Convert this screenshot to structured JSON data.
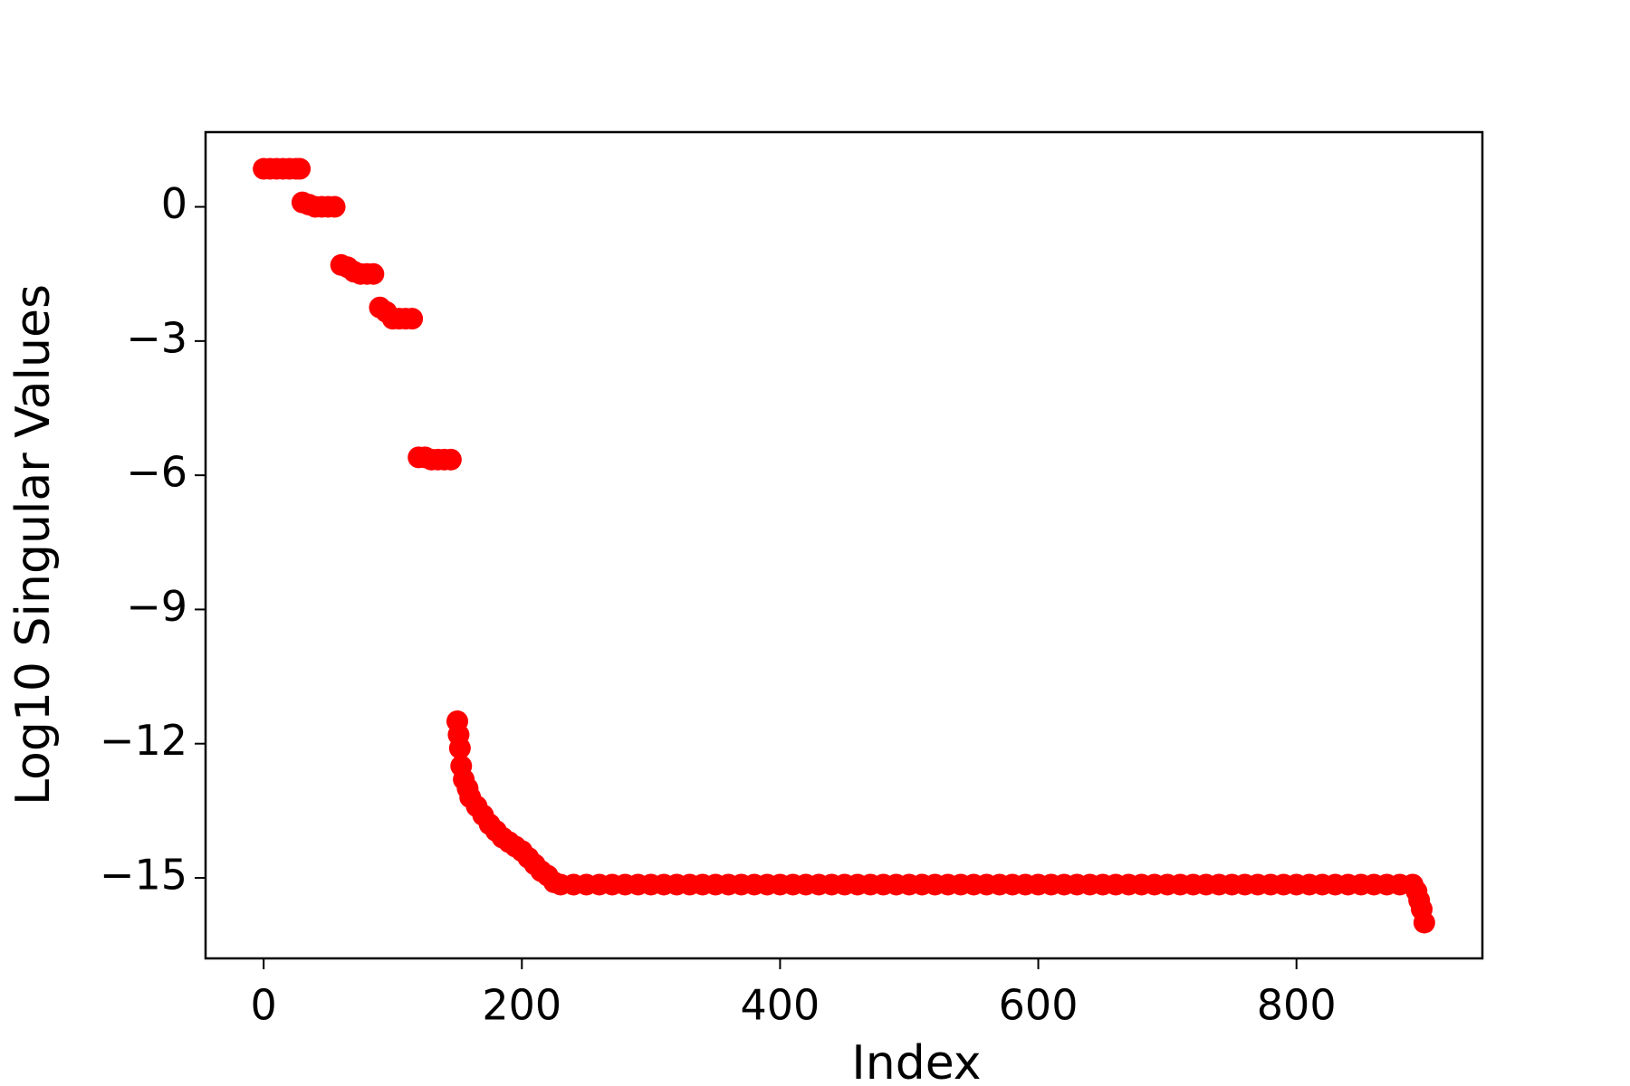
{
  "chart_data": {
    "type": "scatter",
    "xlabel": "Index",
    "ylabel": "Log10 Singular Values",
    "x": [
      0,
      5,
      10,
      15,
      20,
      25,
      28,
      30,
      35,
      40,
      45,
      50,
      55,
      60,
      65,
      70,
      75,
      80,
      85,
      90,
      95,
      100,
      105,
      110,
      115,
      120,
      125,
      130,
      135,
      140,
      145,
      150,
      151,
      152,
      153,
      155,
      158,
      160,
      165,
      170,
      175,
      180,
      185,
      190,
      195,
      200,
      205,
      210,
      215,
      220,
      225,
      230,
      240,
      250,
      260,
      270,
      280,
      290,
      300,
      310,
      320,
      330,
      340,
      350,
      360,
      370,
      380,
      390,
      400,
      410,
      420,
      430,
      440,
      450,
      460,
      470,
      480,
      490,
      500,
      510,
      520,
      530,
      540,
      550,
      560,
      570,
      580,
      590,
      600,
      610,
      620,
      630,
      640,
      650,
      660,
      670,
      680,
      690,
      700,
      710,
      720,
      730,
      740,
      750,
      760,
      770,
      780,
      790,
      800,
      810,
      820,
      830,
      840,
      850,
      860,
      870,
      880,
      890,
      893,
      895,
      897,
      899
    ],
    "series": [
      {
        "color": "#ff0000",
        "values": [
          0.85,
          0.85,
          0.85,
          0.85,
          0.85,
          0.85,
          0.85,
          0.1,
          0.05,
          0,
          0,
          0,
          0,
          -1.3,
          -1.35,
          -1.45,
          -1.5,
          -1.5,
          -1.5,
          -2.25,
          -2.35,
          -2.5,
          -2.5,
          -2.5,
          -2.5,
          -5.6,
          -5.6,
          -5.65,
          -5.65,
          -5.65,
          -5.65,
          -11.5,
          -11.8,
          -12.1,
          -12.5,
          -12.8,
          -13.0,
          -13.2,
          -13.4,
          -13.6,
          -13.8,
          -13.95,
          -14.1,
          -14.2,
          -14.3,
          -14.4,
          -14.55,
          -14.7,
          -14.85,
          -14.95,
          -15.1,
          -15.15,
          -15.15,
          -15.15,
          -15.15,
          -15.15,
          -15.15,
          -15.15,
          -15.15,
          -15.15,
          -15.15,
          -15.15,
          -15.15,
          -15.15,
          -15.15,
          -15.15,
          -15.15,
          -15.15,
          -15.15,
          -15.15,
          -15.15,
          -15.15,
          -15.15,
          -15.15,
          -15.15,
          -15.15,
          -15.15,
          -15.15,
          -15.15,
          -15.15,
          -15.15,
          -15.15,
          -15.15,
          -15.15,
          -15.15,
          -15.15,
          -15.15,
          -15.15,
          -15.15,
          -15.15,
          -15.15,
          -15.15,
          -15.15,
          -15.15,
          -15.15,
          -15.15,
          -15.15,
          -15.15,
          -15.15,
          -15.15,
          -15.15,
          -15.15,
          -15.15,
          -15.15,
          -15.15,
          -15.15,
          -15.15,
          -15.15,
          -15.15,
          -15.15,
          -15.15,
          -15.15,
          -15.15,
          -15.15,
          -15.15,
          -15.15,
          -15.15,
          -15.15,
          -15.3,
          -15.5,
          -15.7,
          -16.0
        ]
      }
    ],
    "xlim": [
      -45,
      944
    ],
    "ylim": [
      -16.8,
      1.67
    ],
    "xticks": [
      0,
      200,
      400,
      600,
      800
    ],
    "yticks": [
      0,
      {
        "value": -3,
        "label": "−3"
      },
      {
        "value": -6,
        "label": "−6"
      },
      {
        "value": -9,
        "label": "−9"
      },
      {
        "value": -12,
        "label": "−12"
      },
      {
        "value": -15,
        "label": "−15"
      }
    ]
  }
}
